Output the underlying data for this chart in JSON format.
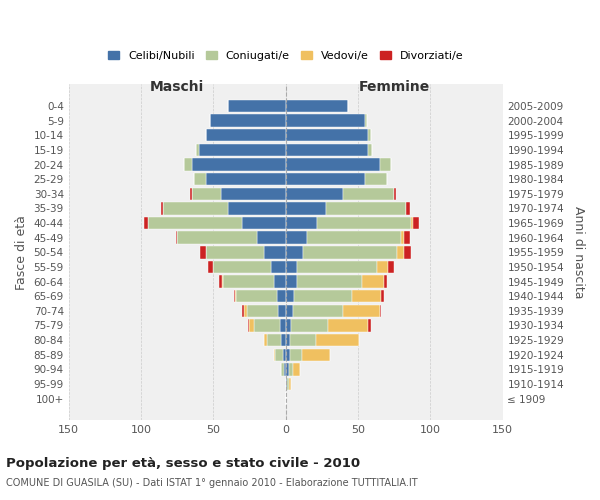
{
  "age_groups": [
    "100+",
    "95-99",
    "90-94",
    "85-89",
    "80-84",
    "75-79",
    "70-74",
    "65-69",
    "60-64",
    "55-59",
    "50-54",
    "45-49",
    "40-44",
    "35-39",
    "30-34",
    "25-29",
    "20-24",
    "15-19",
    "10-14",
    "5-9",
    "0-4"
  ],
  "birth_years": [
    "≤ 1909",
    "1910-1914",
    "1915-1919",
    "1920-1924",
    "1925-1929",
    "1930-1934",
    "1935-1939",
    "1940-1944",
    "1945-1949",
    "1950-1954",
    "1955-1959",
    "1960-1964",
    "1965-1969",
    "1970-1974",
    "1975-1979",
    "1980-1984",
    "1985-1989",
    "1990-1994",
    "1995-1999",
    "2000-2004",
    "2005-2009"
  ],
  "maschi": {
    "celibi": [
      0,
      0,
      1,
      2,
      3,
      4,
      5,
      6,
      8,
      10,
      15,
      20,
      30,
      40,
      45,
      55,
      65,
      60,
      55,
      52,
      40
    ],
    "coniugati": [
      0,
      0,
      2,
      5,
      10,
      18,
      22,
      28,
      35,
      40,
      40,
      55,
      65,
      45,
      20,
      8,
      5,
      2,
      0,
      0,
      0
    ],
    "vedovi": [
      0,
      0,
      0,
      1,
      2,
      3,
      2,
      1,
      1,
      0,
      0,
      0,
      0,
      0,
      0,
      0,
      0,
      0,
      0,
      0,
      0
    ],
    "divorziati": [
      0,
      0,
      0,
      0,
      0,
      1,
      1,
      1,
      2,
      4,
      4,
      1,
      3,
      1,
      1,
      0,
      0,
      0,
      0,
      0,
      0
    ]
  },
  "femmine": {
    "nubili": [
      0,
      1,
      2,
      3,
      3,
      4,
      5,
      6,
      8,
      8,
      12,
      15,
      22,
      28,
      40,
      55,
      65,
      57,
      57,
      55,
      43
    ],
    "coniugate": [
      0,
      1,
      3,
      8,
      18,
      25,
      35,
      40,
      45,
      55,
      65,
      65,
      65,
      55,
      35,
      15,
      8,
      3,
      2,
      1,
      0
    ],
    "vedove": [
      0,
      2,
      5,
      20,
      30,
      28,
      25,
      20,
      15,
      8,
      5,
      2,
      1,
      0,
      0,
      0,
      0,
      0,
      0,
      0,
      0
    ],
    "divorziate": [
      0,
      0,
      0,
      0,
      0,
      2,
      1,
      2,
      2,
      4,
      5,
      4,
      4,
      3,
      1,
      0,
      0,
      0,
      0,
      0,
      0
    ]
  },
  "colors": {
    "celibi": "#4472a8",
    "coniugati": "#b5c99a",
    "vedovi": "#f0c060",
    "divorziati": "#cc2222"
  },
  "legend_labels": [
    "Celibi/Nubili",
    "Coniugati/e",
    "Vedovi/e",
    "Divorziati/e"
  ],
  "title": "Popolazione per età, sesso e stato civile - 2010",
  "subtitle": "COMUNE DI GUASILA (SU) - Dati ISTAT 1° gennaio 2010 - Elaborazione TUTTITALIA.IT",
  "xlabel_left": "Maschi",
  "xlabel_right": "Femmine",
  "ylabel_left": "Fasce di età",
  "ylabel_right": "Anni di nascita",
  "xlim": 150,
  "bg_color": "#ffffff",
  "plot_bg_color": "#f0f0f0"
}
